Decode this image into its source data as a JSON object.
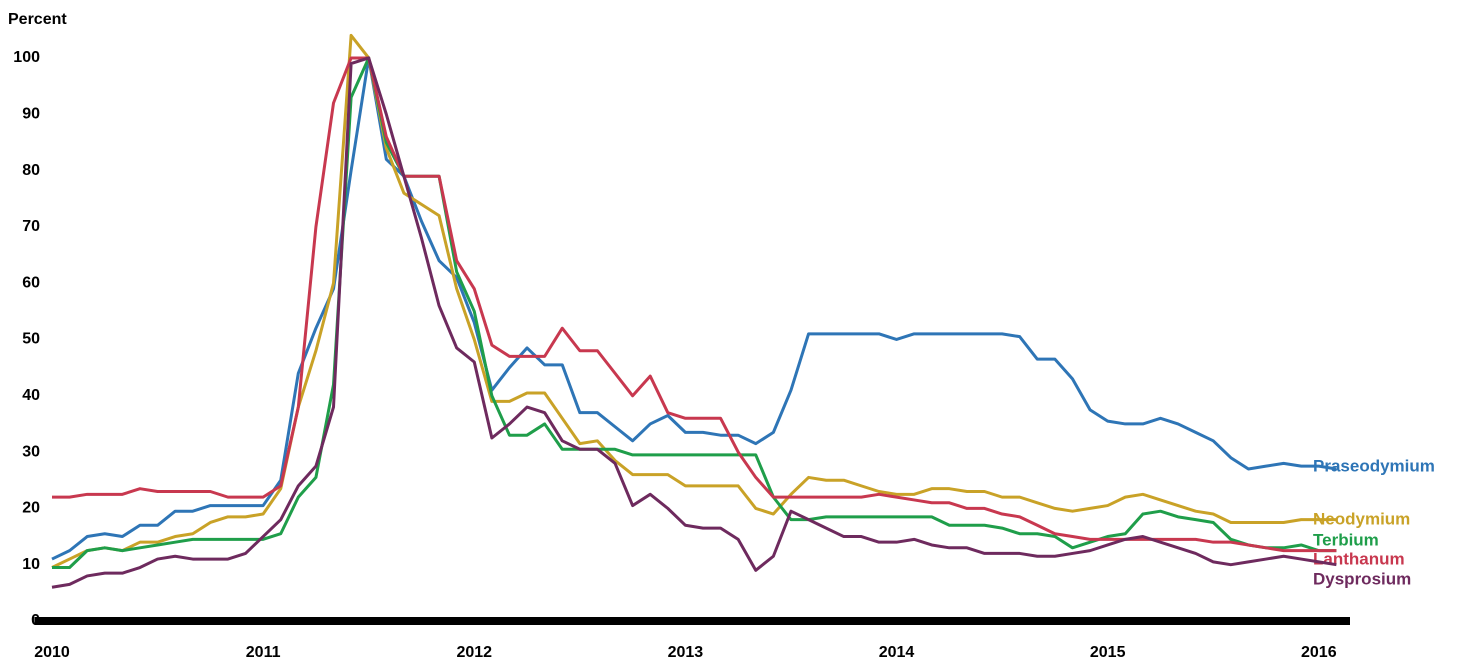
{
  "chart_data": {
    "type": "line",
    "y_label": "Percent",
    "x": [
      0,
      1,
      2,
      3,
      4,
      5,
      6,
      7,
      8,
      9,
      10,
      11,
      12,
      13,
      14,
      15,
      16,
      17,
      18,
      19,
      20,
      21,
      22,
      23,
      24,
      25,
      26,
      27,
      28,
      29,
      30,
      31,
      32,
      33,
      34,
      35,
      36,
      37,
      38,
      39,
      40,
      41,
      42,
      43,
      44,
      45,
      46,
      47,
      48,
      49,
      50,
      51,
      52,
      53,
      54,
      55,
      56,
      57,
      58,
      59,
      60,
      61,
      62,
      63,
      64,
      65,
      66,
      67,
      68,
      69,
      70,
      71,
      72,
      73
    ],
    "xlim": [
      -1,
      74
    ],
    "xticks": [
      {
        "value": 0,
        "label": "2010"
      },
      {
        "value": 12,
        "label": "2011"
      },
      {
        "value": 24,
        "label": "2012"
      },
      {
        "value": 36,
        "label": "2013"
      },
      {
        "value": 48,
        "label": "2014"
      },
      {
        "value": 60,
        "label": "2015"
      },
      {
        "value": 72,
        "label": "2016"
      }
    ],
    "ylim": [
      0,
      105
    ],
    "yticks": [
      0,
      10,
      20,
      30,
      40,
      50,
      60,
      70,
      80,
      90,
      100
    ],
    "series": [
      {
        "name": "Praseodymium",
        "color": "#2e75b6",
        "values": [
          11,
          12.5,
          15,
          15.5,
          15,
          17,
          17,
          19.5,
          19.5,
          20.5,
          20.5,
          20.5,
          20.5,
          25,
          44,
          52,
          59,
          80,
          100,
          82,
          79,
          71,
          64,
          61,
          53,
          41,
          45,
          48.5,
          45.5,
          45.5,
          37,
          37,
          34.5,
          32,
          35,
          36.5,
          33.5,
          33.5,
          33,
          33,
          31.5,
          33.5,
          41,
          51,
          51,
          51,
          51,
          51,
          50,
          51,
          51,
          51,
          51,
          51,
          51,
          50.5,
          46.5,
          46.5,
          43,
          37.5,
          35.5,
          35,
          35,
          36,
          35,
          33.5,
          32,
          29,
          27,
          27.5,
          28,
          27.5,
          27.5,
          27
        ]
      },
      {
        "name": "Neodymium",
        "color": "#c9a227",
        "values": [
          9.5,
          11,
          12.5,
          13,
          12.5,
          14,
          14,
          15,
          15.5,
          17.5,
          18.5,
          18.5,
          19,
          23.5,
          38,
          48,
          60,
          104,
          100,
          84,
          76,
          74,
          72,
          59,
          50,
          39,
          39,
          40.5,
          40.5,
          36,
          31.5,
          32,
          28.5,
          26,
          26,
          26,
          24,
          24,
          24,
          24,
          20,
          19,
          22.5,
          25.5,
          25,
          25,
          24,
          23,
          22.5,
          22.5,
          23.5,
          23.5,
          23,
          23,
          22,
          22,
          21,
          20,
          19.5,
          20,
          20.5,
          22,
          22.5,
          21.5,
          20.5,
          19.5,
          19,
          17.5,
          17.5,
          17.5,
          17.5,
          18,
          18,
          18
        ]
      },
      {
        "name": "Terbium",
        "color": "#1f9e4a",
        "values": [
          9.5,
          9.5,
          12.5,
          13,
          12.5,
          13,
          13.5,
          14,
          14.5,
          14.5,
          14.5,
          14.5,
          14.5,
          15.5,
          22,
          25.5,
          42,
          93,
          100,
          85,
          79,
          79,
          79,
          62,
          55,
          40,
          33,
          33,
          35,
          30.5,
          30.5,
          30.5,
          30.5,
          29.5,
          29.5,
          29.5,
          29.5,
          29.5,
          29.5,
          29.5,
          29.5,
          22,
          18,
          18,
          18.5,
          18.5,
          18.5,
          18.5,
          18.5,
          18.5,
          18.5,
          17,
          17,
          17,
          16.5,
          15.5,
          15.5,
          15,
          13,
          14,
          15,
          15.5,
          19,
          19.5,
          18.5,
          18,
          17.5,
          14.5,
          13.5,
          13,
          13,
          13.5,
          12.5,
          12.5
        ]
      },
      {
        "name": "Lanthanum",
        "color": "#c8384f",
        "values": [
          22,
          22,
          22.5,
          22.5,
          22.5,
          23.5,
          23,
          23,
          23,
          23,
          22,
          22,
          22,
          24,
          38,
          70,
          92,
          100,
          100,
          86,
          79,
          79,
          79,
          64,
          59,
          49,
          47,
          47,
          47,
          52,
          48,
          48,
          44,
          40,
          43.5,
          37,
          36,
          36,
          36,
          30,
          25.5,
          22,
          22,
          22,
          22,
          22,
          22,
          22.5,
          22,
          21.5,
          21,
          21,
          20,
          20,
          19,
          18.5,
          17,
          15.5,
          15,
          14.5,
          14.5,
          14.5,
          14.5,
          14.5,
          14.5,
          14.5,
          14,
          14,
          13.5,
          13,
          12.5,
          12.5,
          12.5,
          12.5
        ]
      },
      {
        "name": "Dysprosium",
        "color": "#6e2a5e",
        "values": [
          6,
          6.5,
          8,
          8.5,
          8.5,
          9.5,
          11,
          11.5,
          11,
          11,
          11,
          12,
          15,
          18,
          24,
          27.5,
          38,
          99,
          100,
          90,
          79,
          68,
          56,
          48.5,
          46,
          32.5,
          35,
          38,
          37,
          32,
          30.5,
          30.5,
          28,
          20.5,
          22.5,
          20,
          17,
          16.5,
          16.5,
          14.5,
          9,
          11.5,
          19.5,
          18,
          16.5,
          15,
          15,
          14,
          14,
          14.5,
          13.5,
          13,
          13,
          12,
          12,
          12,
          11.5,
          11.5,
          12,
          12.5,
          13.5,
          14.5,
          15,
          14,
          13,
          12,
          10.5,
          10,
          10.5,
          11,
          11.5,
          11,
          10.5,
          10
        ]
      }
    ]
  }
}
